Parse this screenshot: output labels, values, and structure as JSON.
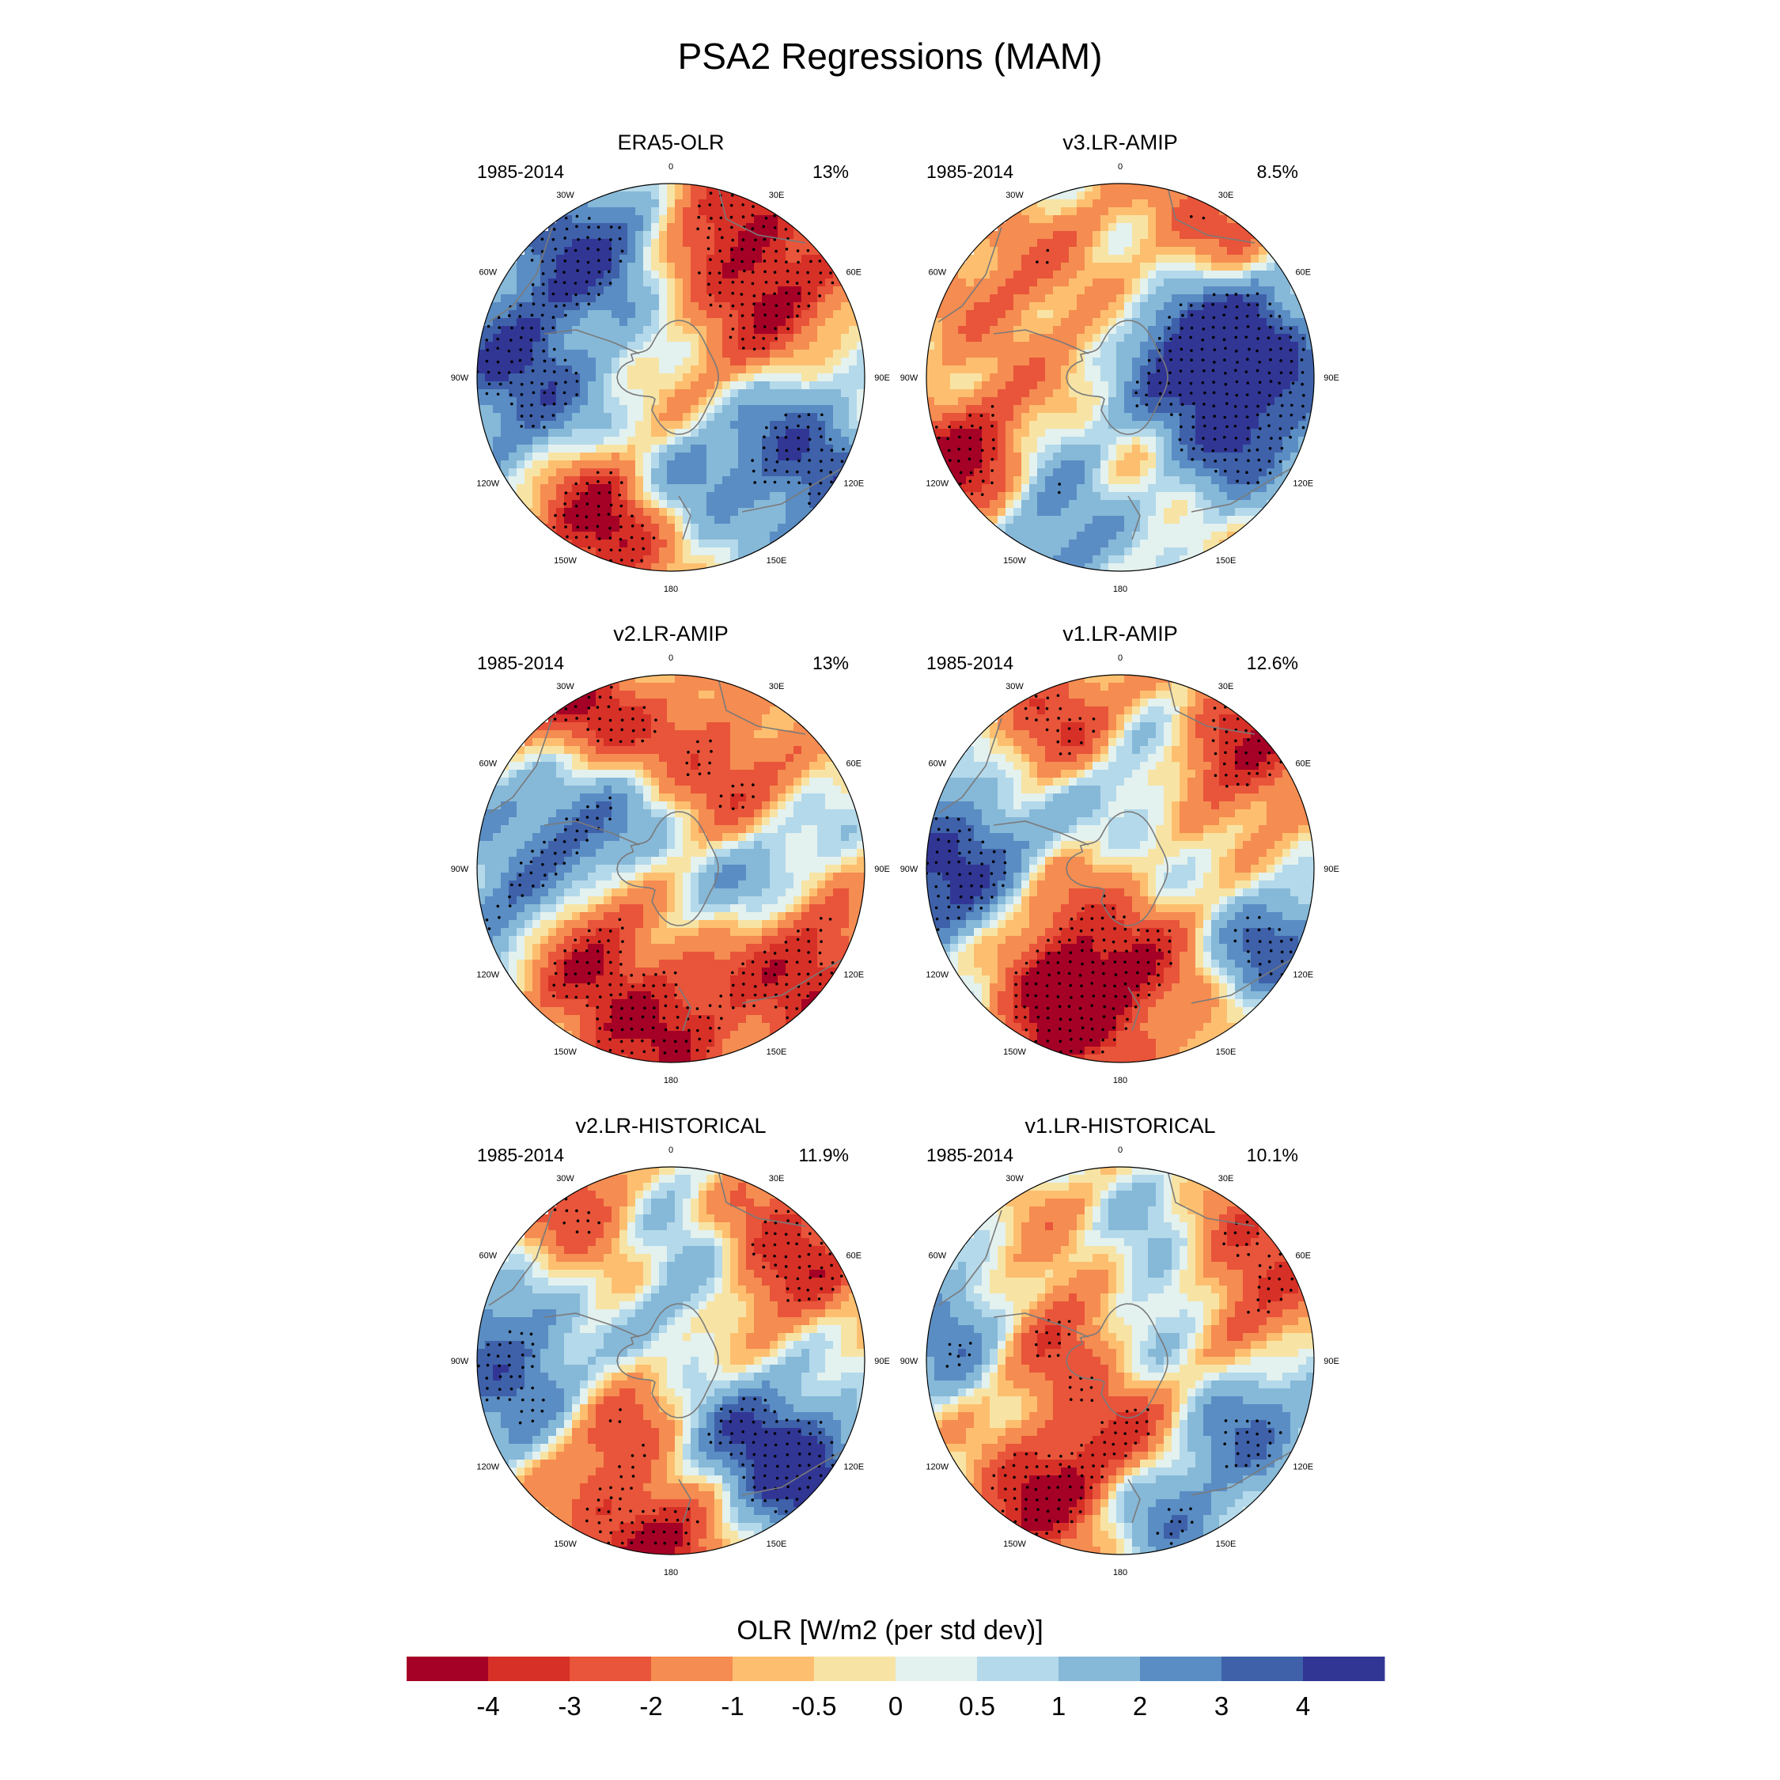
{
  "figure": {
    "title": "PSA2 Regressions (MAM)",
    "lon_labels": [
      "0",
      "30E",
      "60E",
      "90E",
      "120E",
      "150E",
      "180",
      "150W",
      "120W",
      "90W",
      "60W",
      "30W"
    ]
  },
  "panels": [
    {
      "name": "ERA5-OLR",
      "period": "1985-2014",
      "variance": "13%"
    },
    {
      "name": "v3.LR-AMIP",
      "period": "1985-2014",
      "variance": "8.5%"
    },
    {
      "name": "v2.LR-AMIP",
      "period": "1985-2014",
      "variance": "13%"
    },
    {
      "name": "v1.LR-AMIP",
      "period": "1985-2014",
      "variance": "12.6%"
    },
    {
      "name": "v2.LR-HISTORICAL",
      "period": "1985-2014",
      "variance": "11.9%"
    },
    {
      "name": "v1.LR-HISTORICAL",
      "period": "1985-2014",
      "variance": "10.1%"
    }
  ],
  "colorbar": {
    "label": "OLR [W/m2 (per std dev)]",
    "ticks": [
      "-4",
      "-3",
      "-2",
      "-1",
      "-0.5",
      "0",
      "0.5",
      "1",
      "2",
      "3",
      "4"
    ],
    "colors": [
      "#a50026",
      "#d73027",
      "#e8553a",
      "#f58c51",
      "#fdbf6f",
      "#f7e4a5",
      "#e3f1ef",
      "#b4d9ea",
      "#86b8d8",
      "#5a8dc3",
      "#3e61aa",
      "#313695"
    ]
  }
}
